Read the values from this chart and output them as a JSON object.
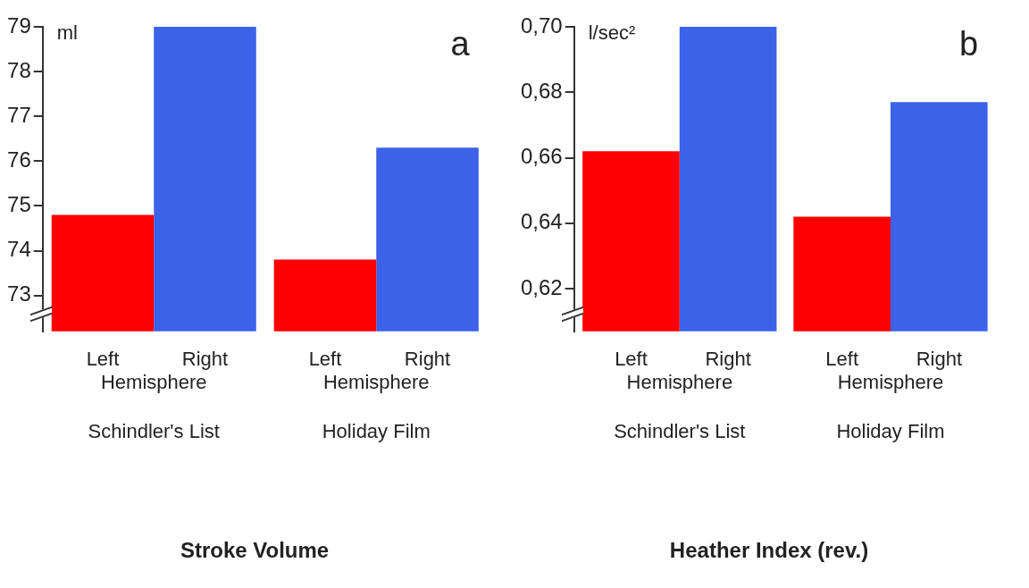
{
  "chart_data": [
    {
      "type": "bar",
      "title": "Stroke Volume",
      "ylabel": "ml",
      "categories": [
        "Schindler's List",
        "Holiday Film"
      ],
      "series": [
        {
          "name": "Left",
          "color": "#ff0000",
          "values": [
            74.8,
            73.8
          ]
        },
        {
          "name": "Right",
          "color": "#3b62e8",
          "values": [
            79.0,
            76.3
          ]
        }
      ],
      "ylim": [
        72.2,
        79
      ],
      "yticks": [
        73,
        74,
        75,
        76,
        77,
        78,
        79
      ],
      "annotations": [
        "a",
        {
          "text": "Hemisphere",
          "x": "Schindler's List"
        },
        {
          "text": "Hemisphere",
          "x": "Holiday Film"
        }
      ]
    },
    {
      "type": "bar",
      "title": "Heather Index (rev.)",
      "ylabel": "l/sec²",
      "categories": [
        "Schindler's List",
        "Holiday Film"
      ],
      "series": [
        {
          "name": "Left",
          "color": "#ff0000",
          "values": [
            0.662,
            0.642
          ]
        },
        {
          "name": "Right",
          "color": "#3b62e8",
          "values": [
            0.7,
            0.677
          ]
        }
      ],
      "ylim": [
        0.607,
        0.7
      ],
      "yticks": [
        {
          "value": 0.62,
          "label": "0,62"
        },
        {
          "value": 0.64,
          "label": "0,64"
        },
        {
          "value": 0.66,
          "label": "0,66"
        },
        {
          "value": 0.68,
          "label": "0,68"
        },
        {
          "value": 0.7,
          "label": "0,70"
        }
      ],
      "annotations": [
        "b",
        {
          "text": "Hemisphere",
          "x": "Schindler's List"
        },
        {
          "text": "Hemisphere",
          "x": "Holiday Film"
        }
      ]
    }
  ]
}
